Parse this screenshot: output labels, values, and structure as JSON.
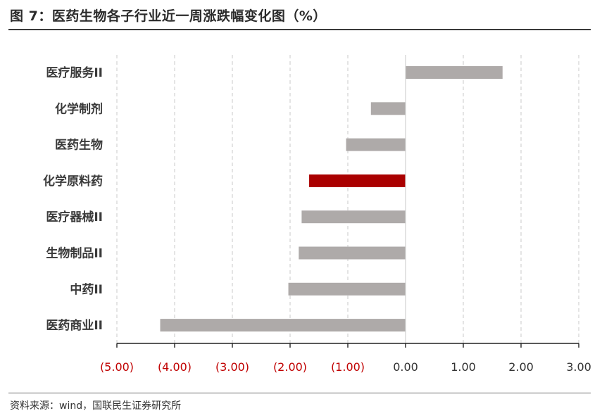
{
  "figure": {
    "title": "图 7：医药生物各子行业近一周涨跌幅变化图（%）",
    "source": "资料来源：wind，国联民生证券研究所"
  },
  "colors": {
    "bar": "#aeaaa9",
    "highlight": "#aa0000",
    "negative_tick": "#c00000",
    "positive_tick": "#333333",
    "grid": "#c8c8c8"
  },
  "chart_data": {
    "type": "bar",
    "orientation": "horizontal",
    "title": "",
    "xlabel": "",
    "ylabel": "",
    "categories": [
      "医疗服务II",
      "化学制剂",
      "医药生物",
      "化学原料药",
      "医疗器械II",
      "生物制品II",
      "中药II",
      "医药商业II"
    ],
    "values": [
      1.68,
      -0.6,
      -1.03,
      -1.67,
      -1.8,
      -1.85,
      -2.03,
      -4.25
    ],
    "highlight_category": "化学原料药",
    "xlim": [
      -5,
      3
    ],
    "xticks": [
      -5,
      -4,
      -3,
      -2,
      -1,
      0,
      1,
      2,
      3
    ],
    "xtick_labels": [
      "(5.00)",
      "(4.00)",
      "(3.00)",
      "(2.00)",
      "(1.00)",
      "0.00",
      "1.00",
      "2.00",
      "3.00"
    ],
    "grid": "vertical dashed",
    "legend": "none"
  }
}
